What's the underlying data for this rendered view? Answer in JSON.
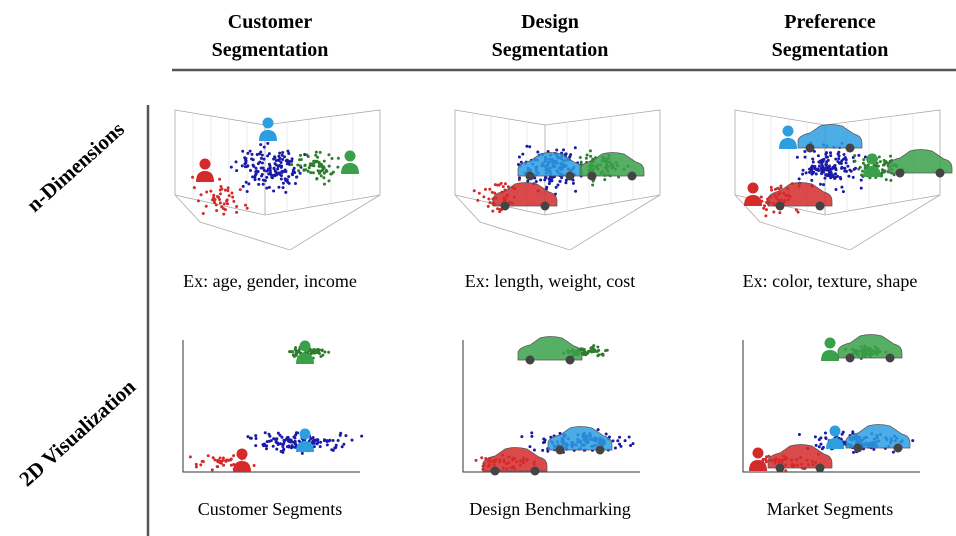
{
  "columns": [
    {
      "title": [
        "Customer",
        "Segmentation"
      ],
      "caption_n": "Ex: age, gender, income",
      "caption_2d": "Customer Segments"
    },
    {
      "title": [
        "Design",
        "Segmentation"
      ],
      "caption_n": "Ex: length, weight, cost",
      "caption_2d": "Design Benchmarking"
    },
    {
      "title": [
        "Preference",
        "Segmentation"
      ],
      "caption_n": "Ex: color, texture, shape",
      "caption_2d": "Market Segments"
    }
  ],
  "rows": [
    "n-Dimensions",
    "2D Visualization"
  ]
}
